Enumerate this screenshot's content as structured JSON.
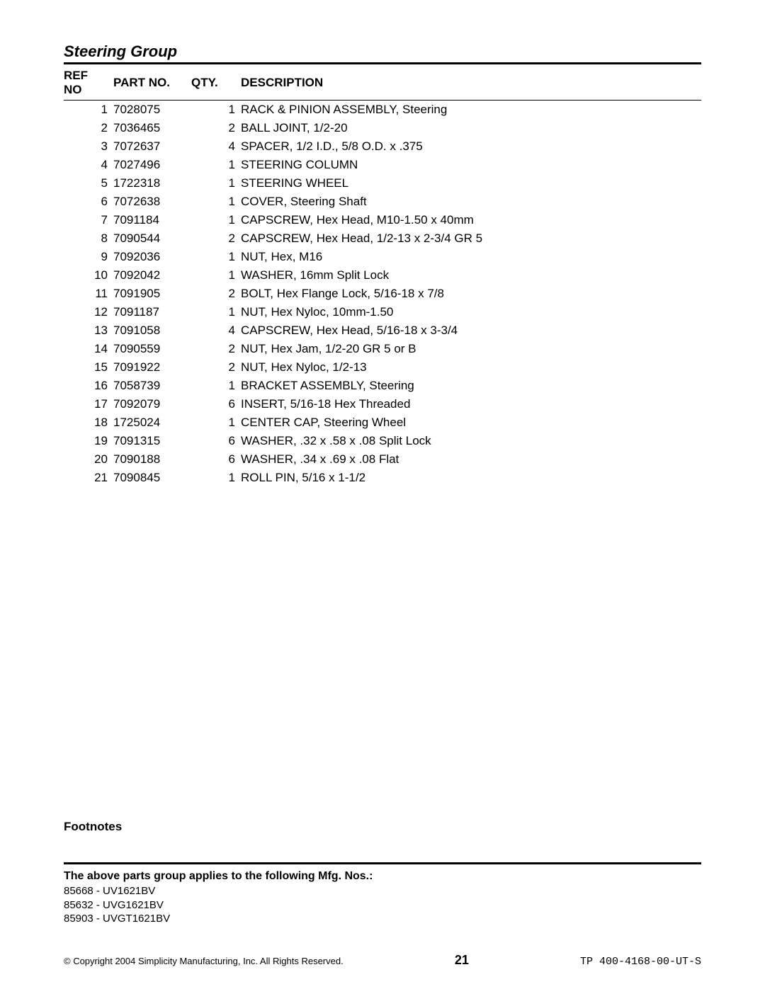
{
  "title": "Steering Group",
  "columns": {
    "ref": "REF NO",
    "part": "PART NO.",
    "qty": "QTY.",
    "desc": "DESCRIPTION"
  },
  "rows": [
    {
      "ref": "1",
      "part": "7028075",
      "qty": "1",
      "desc": "RACK & PINION ASSEMBLY, Steering"
    },
    {
      "ref": "2",
      "part": "7036465",
      "qty": "2",
      "desc": "BALL JOINT, 1/2-20"
    },
    {
      "ref": "3",
      "part": "7072637",
      "qty": "4",
      "desc": "SPACER, 1/2 I.D., 5/8 O.D. x .375"
    },
    {
      "ref": "4",
      "part": "7027496",
      "qty": "1",
      "desc": "STEERING COLUMN"
    },
    {
      "ref": "5",
      "part": "1722318",
      "qty": "1",
      "desc": "STEERING WHEEL"
    },
    {
      "ref": "6",
      "part": "7072638",
      "qty": "1",
      "desc": "COVER, Steering Shaft"
    },
    {
      "ref": "7",
      "part": "7091184",
      "qty": "1",
      "desc": "CAPSCREW, Hex Head, M10-1.50 x 40mm"
    },
    {
      "ref": "8",
      "part": "7090544",
      "qty": "2",
      "desc": "CAPSCREW, Hex Head, 1/2-13 x 2-3/4 GR 5"
    },
    {
      "ref": "9",
      "part": "7092036",
      "qty": "1",
      "desc": "NUT, Hex, M16"
    },
    {
      "ref": "10",
      "part": "7092042",
      "qty": "1",
      "desc": "WASHER, 16mm Split Lock"
    },
    {
      "ref": "11",
      "part": "7091905",
      "qty": "2",
      "desc": "BOLT, Hex Flange Lock, 5/16-18 x 7/8"
    },
    {
      "ref": "12",
      "part": "7091187",
      "qty": "1",
      "desc": "NUT, Hex Nyloc, 10mm-1.50"
    },
    {
      "ref": "13",
      "part": "7091058",
      "qty": "4",
      "desc": "CAPSCREW, Hex Head, 5/16-18 x 3-3/4"
    },
    {
      "ref": "14",
      "part": "7090559",
      "qty": "2",
      "desc": "NUT, Hex Jam, 1/2-20 GR 5 or B"
    },
    {
      "ref": "15",
      "part": "7091922",
      "qty": "2",
      "desc": "NUT, Hex Nyloc, 1/2-13"
    },
    {
      "ref": "16",
      "part": "7058739",
      "qty": "1",
      "desc": "BRACKET ASSEMBLY, Steering"
    },
    {
      "ref": "17",
      "part": "7092079",
      "qty": "6",
      "desc": "INSERT, 5/16-18 Hex Threaded"
    },
    {
      "ref": "18",
      "part": "1725024",
      "qty": "1",
      "desc": "CENTER CAP, Steering Wheel"
    },
    {
      "ref": "19",
      "part": "7091315",
      "qty": "6",
      "desc": "WASHER, .32 x .58 x .08 Split Lock"
    },
    {
      "ref": "20",
      "part": "7090188",
      "qty": "6",
      "desc": "WASHER, .34 x .69 x .08 Flat"
    },
    {
      "ref": "21",
      "part": "7090845",
      "qty": "1",
      "desc": "ROLL PIN, 5/16 x 1-1/2"
    }
  ],
  "footnotes_heading": "Footnotes",
  "mfg_heading": "The above parts group applies to the following Mfg. Nos.:",
  "mfg_nos": [
    "85668 - UV1621BV",
    "85632 - UVG1621BV",
    "85903 - UVGT1621BV"
  ],
  "footer": {
    "copyright": "© Copyright 2004 Simplicity Manufacturing, Inc. All Rights Reserved.",
    "page": "21",
    "docno": "TP 400-4168-00-UT-S"
  }
}
